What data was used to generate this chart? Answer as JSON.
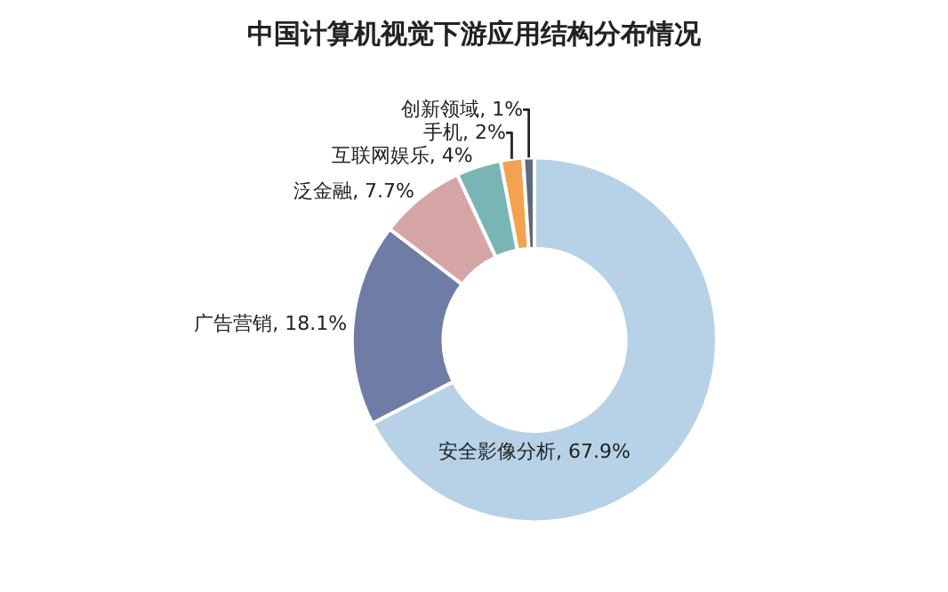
{
  "chart_data": {
    "type": "donut",
    "title": "中国计算机视觉下游应用结构分布情况",
    "categories": [
      "安全影像分析",
      "广告营销",
      "泛金融",
      "互联网娱乐",
      "手机",
      "创新领域"
    ],
    "values": [
      67.9,
      18.1,
      7.7,
      4,
      2,
      1
    ],
    "value_labels": [
      "67.9%",
      "18.1%",
      "7.7%",
      "4%",
      "2%",
      "1%"
    ],
    "colors": [
      "#b7d2e6",
      "#6f7ca6",
      "#d6a5a5",
      "#7ab5b5",
      "#f3a24f",
      "#5d6b78"
    ],
    "legend": false
  }
}
